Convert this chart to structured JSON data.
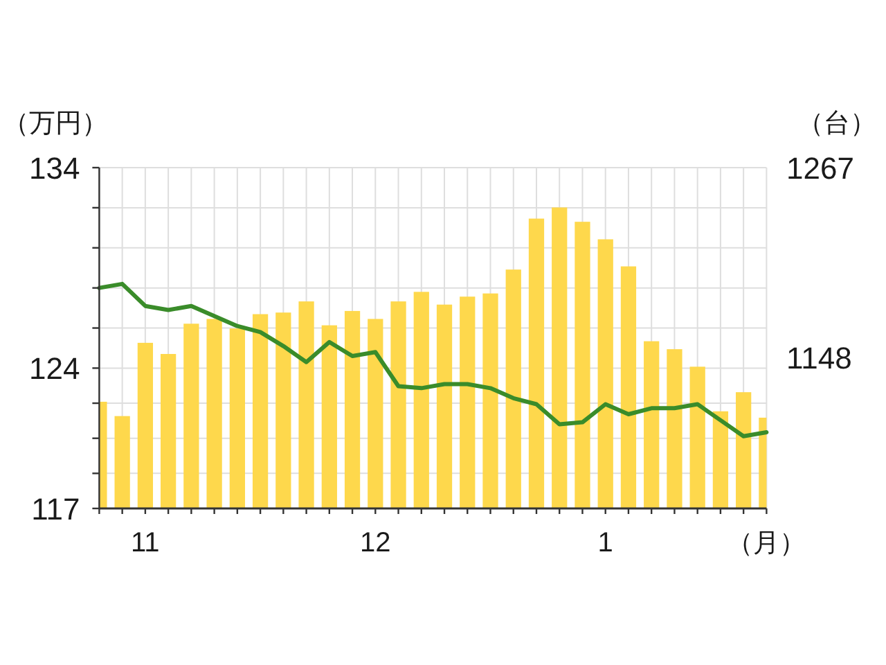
{
  "chart_data": {
    "type": "bar",
    "categories": [
      null,
      null,
      "11",
      null,
      null,
      null,
      null,
      null,
      null,
      null,
      null,
      null,
      "12",
      null,
      null,
      null,
      null,
      null,
      null,
      null,
      null,
      null,
      "1",
      null,
      null,
      null,
      null,
      null,
      null,
      null
    ],
    "xlabel": "（月）",
    "ylabel": "（万円）",
    "y2label": "（台）",
    "ylim": [
      117,
      134
    ],
    "yticks": [
      117,
      {
        "value": 118.75,
        "label": null
      },
      {
        "value": 120.5,
        "label": null
      },
      {
        "value": 122.25,
        "label": null
      },
      124,
      {
        "value": 126,
        "label": null
      },
      {
        "value": 128,
        "label": null
      },
      {
        "value": 130,
        "label": null
      },
      {
        "value": 132,
        "label": null
      },
      134
    ],
    "y2lim": [
      1053,
      1267
    ],
    "y2ticks": [
      1148,
      1267
    ],
    "grid": true,
    "series": [
      {
        "axis": "y2",
        "color": "#fed84c",
        "values": [
          1120,
          1111,
          1157,
          1150,
          1169,
          1172,
          1166,
          1175,
          1176,
          1183,
          1168,
          1177,
          1172,
          1183,
          1189,
          1181,
          1186,
          1188,
          1203,
          1235,
          1242,
          1233,
          1222,
          1205,
          1158,
          1153,
          1142,
          1114,
          1126,
          1110
        ]
      },
      {
        "type": "line",
        "axis": "y",
        "color": "#3a8c2a",
        "values": [
          128,
          128.2,
          127.1,
          126.9,
          127.1,
          126.6,
          126.1,
          125.8,
          125.1,
          124.3,
          125.3,
          124.6,
          124.8,
          123.1,
          123,
          123.2,
          123.2,
          123,
          122.5,
          122.2,
          121.2,
          121.3,
          122.2,
          121.7,
          122,
          122,
          122.2,
          121.4,
          120.6,
          120.8
        ]
      }
    ]
  }
}
